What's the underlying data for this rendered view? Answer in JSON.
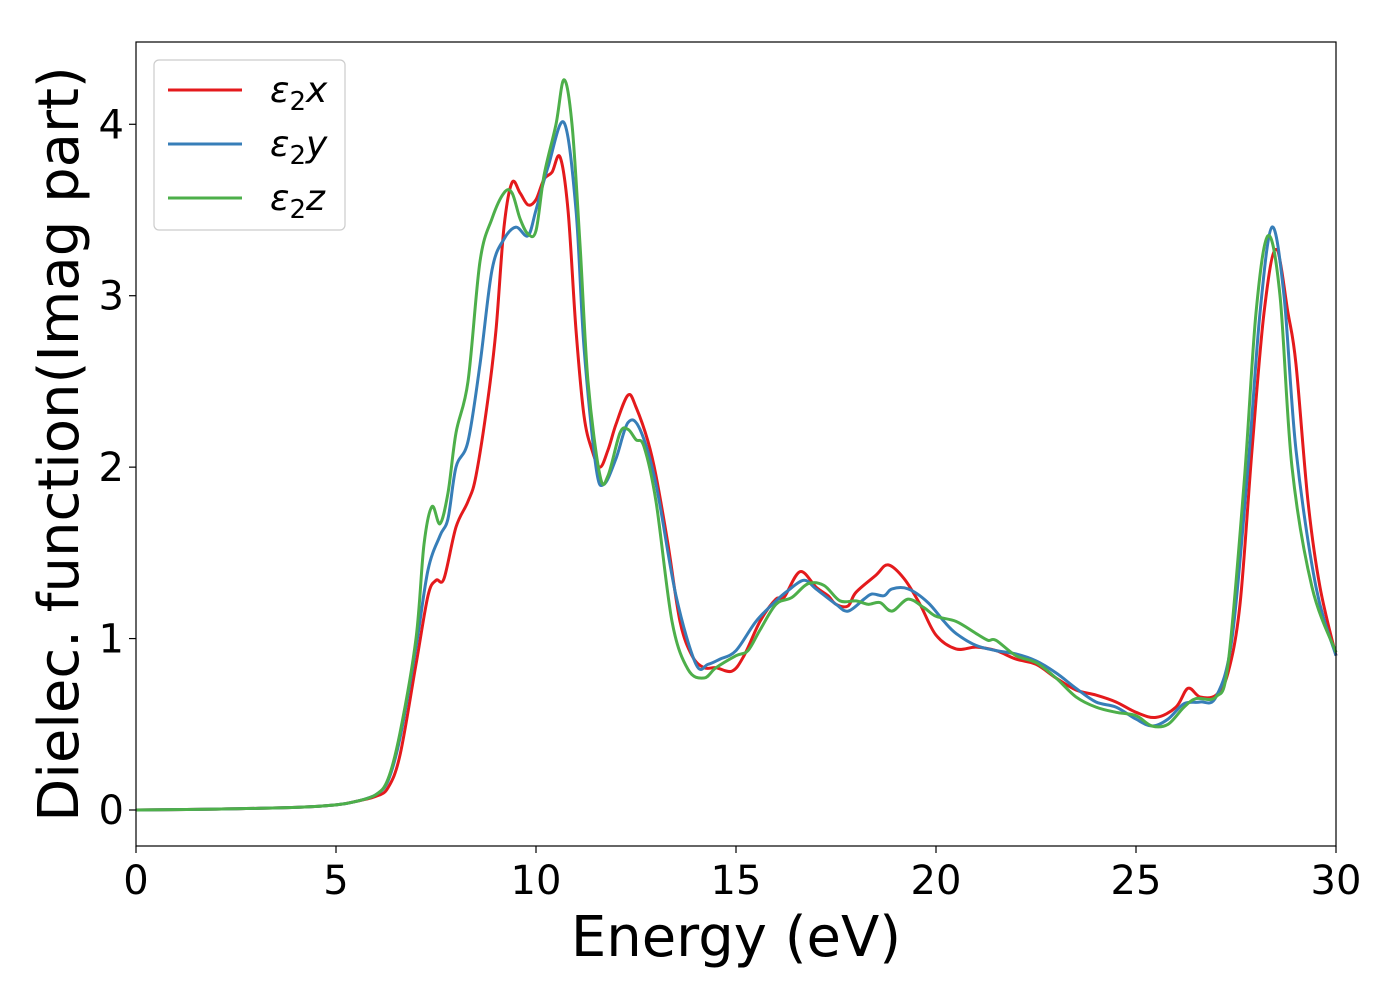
{
  "chart_data": {
    "type": "line",
    "title": "",
    "xlabel": "Energy (eV)",
    "ylabel": "Dielec. function(Imag part)",
    "xlim": [
      0,
      30
    ],
    "ylim": [
      -0.21,
      4.48
    ],
    "xticks": [
      0,
      5,
      10,
      15,
      20,
      25,
      30
    ],
    "yticks": [
      0,
      1,
      2,
      3,
      4
    ],
    "grid": false,
    "legend_position": "top-left",
    "series": [
      {
        "name": "ε2x",
        "legend": {
          "base": "ε",
          "sub": "2",
          "var": "x"
        },
        "color": "#e41a1c",
        "x": [
          0,
          2,
          4,
          5,
          5.5,
          6,
          6.3,
          6.6,
          7,
          7.3,
          7.5,
          7.7,
          8,
          8.3,
          8.5,
          8.8,
          9,
          9.2,
          9.4,
          9.6,
          9.8,
          10,
          10.2,
          10.4,
          10.6,
          10.8,
          11,
          11.2,
          11.4,
          11.6,
          11.8,
          12,
          12.3,
          12.5,
          12.8,
          13,
          13.3,
          13.6,
          13.9,
          14.2,
          14.5,
          14.9,
          15.2,
          15.6,
          16,
          16.2,
          16.6,
          17,
          17.3,
          17.5,
          17.8,
          18,
          18.5,
          18.8,
          19.2,
          19.6,
          20,
          20.5,
          21,
          21.5,
          22,
          22.5,
          23,
          23.5,
          24,
          24.5,
          25,
          25.5,
          26,
          26.3,
          26.6,
          27,
          27.3,
          27.6,
          27.9,
          28.2,
          28.5,
          28.8,
          29,
          29.3,
          29.6,
          30
        ],
        "y": [
          0,
          0.005,
          0.015,
          0.03,
          0.05,
          0.08,
          0.13,
          0.32,
          0.85,
          1.25,
          1.34,
          1.35,
          1.65,
          1.8,
          1.95,
          2.4,
          2.8,
          3.4,
          3.66,
          3.6,
          3.53,
          3.56,
          3.68,
          3.72,
          3.81,
          3.5,
          2.8,
          2.3,
          2.1,
          2.0,
          2.1,
          2.25,
          2.42,
          2.35,
          2.15,
          1.95,
          1.55,
          1.1,
          0.9,
          0.83,
          0.83,
          0.81,
          0.9,
          1.1,
          1.23,
          1.24,
          1.39,
          1.3,
          1.25,
          1.2,
          1.19,
          1.27,
          1.37,
          1.43,
          1.35,
          1.2,
          1.02,
          0.94,
          0.95,
          0.93,
          0.88,
          0.85,
          0.77,
          0.7,
          0.67,
          0.63,
          0.57,
          0.54,
          0.6,
          0.71,
          0.66,
          0.67,
          0.8,
          1.2,
          2.1,
          2.9,
          3.27,
          2.9,
          2.6,
          1.8,
          1.3,
          0.9
        ]
      },
      {
        "name": "ε2y",
        "legend": {
          "base": "ε",
          "sub": "2",
          "var": "y"
        },
        "color": "#377eb8",
        "x": [
          0,
          2,
          4,
          5,
          5.5,
          6,
          6.3,
          6.6,
          7,
          7.3,
          7.6,
          7.8,
          8,
          8.3,
          8.6,
          8.9,
          9.2,
          9.5,
          9.8,
          10,
          10.3,
          10.7,
          11,
          11.2,
          11.5,
          11.7,
          12,
          12.3,
          12.6,
          13,
          13.5,
          14,
          14.3,
          14.6,
          15,
          15.5,
          16,
          16.3,
          16.7,
          17,
          17.5,
          17.8,
          18.2,
          18.4,
          18.7,
          18.9,
          19.3,
          19.8,
          20.2,
          20.5,
          21,
          21.5,
          22,
          22.5,
          23,
          23.5,
          24,
          24.5,
          25,
          25.4,
          25.8,
          26.2,
          26.6,
          27,
          27.4,
          27.8,
          28.1,
          28.4,
          28.7,
          29,
          29.5,
          30
        ],
        "y": [
          0,
          0.005,
          0.015,
          0.03,
          0.05,
          0.09,
          0.17,
          0.42,
          0.95,
          1.4,
          1.6,
          1.7,
          2.0,
          2.15,
          2.6,
          3.15,
          3.33,
          3.4,
          3.35,
          3.5,
          3.75,
          4.01,
          3.5,
          2.7,
          2.0,
          1.9,
          2.05,
          2.26,
          2.22,
          1.9,
          1.25,
          0.85,
          0.85,
          0.88,
          0.93,
          1.1,
          1.22,
          1.28,
          1.34,
          1.29,
          1.2,
          1.16,
          1.23,
          1.26,
          1.25,
          1.29,
          1.29,
          1.21,
          1.1,
          1.03,
          0.96,
          0.93,
          0.91,
          0.87,
          0.8,
          0.71,
          0.63,
          0.6,
          0.53,
          0.49,
          0.53,
          0.62,
          0.63,
          0.66,
          1.0,
          2.0,
          2.9,
          3.4,
          3.0,
          2.1,
          1.3,
          0.9
        ]
      },
      {
        "name": "ε2z",
        "legend": {
          "base": "ε",
          "sub": "2",
          "var": "z"
        },
        "color": "#4daf4a",
        "x": [
          0,
          2,
          4,
          5,
          5.5,
          6,
          6.3,
          6.6,
          7,
          7.2,
          7.4,
          7.6,
          7.8,
          8,
          8.3,
          8.6,
          8.9,
          9.2,
          9.4,
          9.6,
          9.8,
          10,
          10.2,
          10.5,
          10.7,
          10.9,
          11.1,
          11.3,
          11.6,
          11.8,
          12.1,
          12.3,
          12.5,
          12.7,
          13,
          13.4,
          13.8,
          14.2,
          14.5,
          15,
          15.3,
          15.6,
          16,
          16.4,
          16.8,
          17.2,
          17.6,
          18,
          18.3,
          18.6,
          18.9,
          19.3,
          19.7,
          20,
          20.5,
          21,
          21.3,
          21.5,
          22,
          22.5,
          23,
          23.5,
          24,
          24.5,
          25,
          25.4,
          25.8,
          26.2,
          26.5,
          27,
          27.3,
          27.7,
          28,
          28.3,
          28.6,
          28.9,
          29.4,
          30
        ],
        "y": [
          0,
          0.005,
          0.015,
          0.03,
          0.05,
          0.09,
          0.18,
          0.45,
          1.0,
          1.55,
          1.77,
          1.67,
          1.85,
          2.2,
          2.5,
          3.2,
          3.45,
          3.6,
          3.6,
          3.45,
          3.36,
          3.38,
          3.7,
          4.0,
          4.26,
          4.0,
          3.3,
          2.5,
          1.95,
          1.95,
          2.2,
          2.22,
          2.16,
          2.12,
          1.8,
          1.1,
          0.82,
          0.77,
          0.83,
          0.9,
          0.93,
          1.05,
          1.2,
          1.24,
          1.32,
          1.31,
          1.22,
          1.22,
          1.2,
          1.21,
          1.16,
          1.23,
          1.18,
          1.13,
          1.1,
          1.03,
          0.99,
          0.99,
          0.9,
          0.86,
          0.77,
          0.66,
          0.6,
          0.57,
          0.55,
          0.49,
          0.5,
          0.6,
          0.65,
          0.66,
          0.85,
          1.9,
          2.9,
          3.35,
          3.0,
          2.0,
          1.3,
          0.92
        ]
      }
    ]
  }
}
